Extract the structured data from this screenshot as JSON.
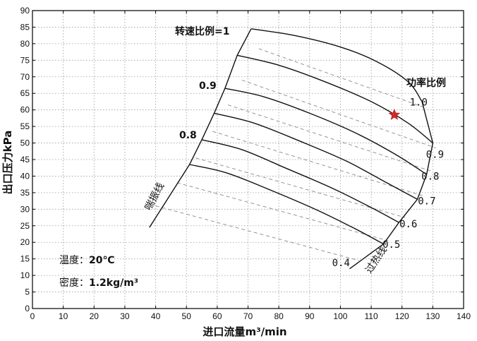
{
  "chart_data": {
    "type": "line",
    "title": "",
    "xlabel": "进口流量",
    "xlabel_unit": "m³/min",
    "ylabel": "出口压力kPa",
    "xlim": [
      0,
      140
    ],
    "ylim": [
      0,
      90
    ],
    "x_ticks": [
      0,
      10,
      20,
      30,
      40,
      50,
      60,
      70,
      80,
      90,
      100,
      110,
      120,
      130,
      140
    ],
    "y_ticks": [
      0,
      5,
      10,
      15,
      20,
      25,
      30,
      35,
      40,
      45,
      50,
      55,
      60,
      65,
      70,
      75,
      80,
      85,
      90
    ],
    "grid": true,
    "speed_lines": [
      {
        "label": "转速比例=1",
        "x": [
          71,
          85,
          100,
          112,
          122,
          126.5
        ],
        "y": [
          84.5,
          82.5,
          79,
          74.5,
          68.5,
          62.5
        ]
      },
      {
        "label": "",
        "x": [
          66.5,
          80,
          95,
          110,
          122,
          130
        ],
        "y": [
          76.5,
          73.5,
          68.5,
          62.5,
          56,
          50
        ]
      },
      {
        "label": "0.9",
        "x": [
          62.5,
          75,
          90,
          105,
          118,
          128
        ],
        "y": [
          66.5,
          64,
          59,
          53,
          46.5,
          40.5
        ]
      },
      {
        "label": "0.8",
        "x": [
          59,
          72,
          87,
          102,
          115,
          125
        ],
        "y": [
          59,
          56,
          50.5,
          44.5,
          38,
          33
        ]
      },
      {
        "label": "",
        "x": [
          55,
          68,
          82,
          97,
          110,
          119
        ],
        "y": [
          51,
          48,
          42.5,
          36.5,
          30.5,
          26
        ]
      },
      {
        "label": "",
        "x": [
          51,
          63,
          78,
          93,
          105,
          114
        ],
        "y": [
          43.5,
          41,
          35.5,
          29.5,
          24,
          19.5
        ]
      }
    ],
    "surge_line": {
      "label": "喘振线",
      "x": [
        38,
        51,
        55,
        59,
        62.5,
        66.5,
        71
      ],
      "y": [
        24.5,
        43.5,
        51,
        59,
        66.5,
        76.5,
        84.5
      ]
    },
    "choke_line": {
      "label": "过热线",
      "x": [
        103,
        114,
        119,
        125,
        128,
        130,
        130,
        126.5
      ],
      "y": [
        12,
        19.5,
        26,
        33,
        40.5,
        50,
        50,
        62.5
      ]
    },
    "power_ratio_label": "功率比例",
    "power_ratio_lines": [
      {
        "label": "0.4",
        "x": [
          40,
          106
        ],
        "y": [
          31,
          14.5
        ]
      },
      {
        "label": "0.5",
        "x": [
          47,
          115.5
        ],
        "y": [
          38,
          20.5
        ]
      },
      {
        "label": "0.6",
        "x": [
          53,
          121
        ],
        "y": [
          45.5,
          27.5
        ]
      },
      {
        "label": "0.7",
        "x": [
          58.5,
          127
        ],
        "y": [
          53.5,
          34
        ]
      },
      {
        "label": "0.8",
        "x": [
          63.5,
          129.5
        ],
        "y": [
          61.5,
          41.5
        ]
      },
      {
        "label": "0.9",
        "x": [
          68,
          131
        ],
        "y": [
          69,
          48.5
        ]
      },
      {
        "label": "1.0",
        "x": [
          73.5,
          128
        ],
        "y": [
          78.5,
          60.5
        ]
      }
    ],
    "operating_point": {
      "x": 117.5,
      "y": 58.5,
      "color": "#d62728"
    },
    "speed_label_main": "转速比例=1",
    "speed_label_09": "0.9",
    "speed_label_08": "0.8",
    "info": {
      "temperature_label": "温度：",
      "temperature_value": "20℃",
      "density_label": "密度：",
      "density_value": "1.2kg/m³"
    }
  }
}
